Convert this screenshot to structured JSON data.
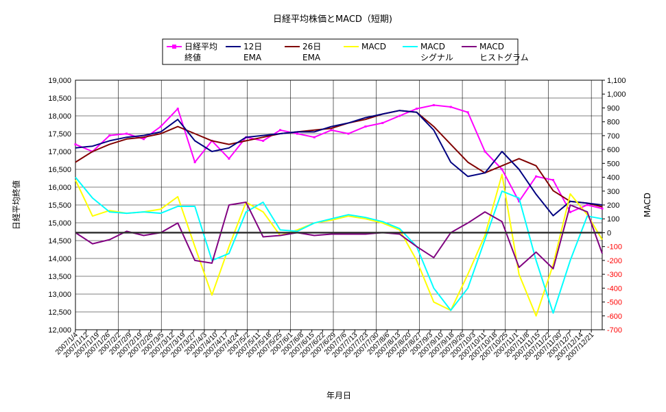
{
  "chart_data": {
    "type": "line",
    "title": "日経平均株価とMACD（短期)",
    "xlabel": "年月日",
    "ylabel_left": "日経平均終値",
    "ylabel_right": "MACD",
    "ylim_left": [
      12000,
      19000
    ],
    "ylim_right": [
      -700,
      1100
    ],
    "left_ticks": [
      "12,000",
      "12,500",
      "13,000",
      "13,500",
      "14,000",
      "14,500",
      "15,000",
      "15,500",
      "16,000",
      "16,500",
      "17,000",
      "17,500",
      "18,000",
      "18,500",
      "19,000"
    ],
    "right_ticks": [
      "-700",
      "-600",
      "-500",
      "-400",
      "-300",
      "-200",
      "-100",
      "0",
      "100",
      "200",
      "300",
      "400",
      "500",
      "600",
      "700",
      "800",
      "900",
      "1,000",
      "1,100"
    ],
    "x_ticks": [
      "2007/1/4",
      "2007/1/12",
      "2007/1/19",
      "2007/1/26",
      "2007/2/2",
      "2007/2/9",
      "2007/2/19",
      "2007/2/26",
      "2007/3/5",
      "2007/3/12",
      "2007/3/19",
      "2007/3/27",
      "2007/4/3",
      "2007/4/10",
      "2007/4/17",
      "2007/4/24",
      "2007/5/2",
      "2007/5/11",
      "2007/5/18",
      "2007/5/25",
      "2007/6/1",
      "2007/6/8",
      "2007/6/15",
      "2007/6/22",
      "2007/6/29",
      "2007/7/6",
      "2007/7/13",
      "2007/7/23",
      "2007/7/30",
      "2007/8/6",
      "2007/8/13",
      "2007/8/20",
      "2007/8/27",
      "2007/9/3",
      "2007/9/10",
      "2007/9/18",
      "2007/9/26",
      "2007/10/3",
      "2007/10/11",
      "2007/10/18",
      "2007/10/25",
      "2007/11/1",
      "2007/11/8",
      "2007/11/15",
      "2007/11/22",
      "2007/11/30",
      "2007/12/7",
      "2007/12/14",
      "2007/12/21"
    ],
    "legend": [
      {
        "label": "日経平均\n終値",
        "color": "#ff00ff",
        "marker": true
      },
      {
        "label": "12日\nEMA",
        "color": "#000080",
        "marker": false
      },
      {
        "label": "26日\nEMA",
        "color": "#800000",
        "marker": false
      },
      {
        "label": "MACD",
        "color": "#ffff00",
        "marker": false
      },
      {
        "label": "MACD\nシグナル",
        "color": "#00ffff",
        "marker": false
      },
      {
        "label": "MACD\nヒストグラム",
        "color": "#800080",
        "marker": false
      }
    ],
    "x": [
      0,
      8,
      16,
      24,
      32,
      40,
      48,
      56,
      64,
      72,
      80,
      88,
      96,
      104,
      112,
      120,
      128,
      136,
      144,
      152,
      160,
      168,
      176,
      184,
      192,
      200,
      208,
      216,
      224,
      232,
      240,
      247
    ],
    "series": [
      {
        "name": "日経平均\n終値",
        "axis": "left",
        "color": "#ff00ff",
        "values": [
          17200,
          17000,
          17450,
          17500,
          17350,
          17700,
          18200,
          16700,
          17300,
          16800,
          17400,
          17300,
          17600,
          17500,
          17400,
          17600,
          17500,
          17700,
          17800,
          18000,
          18200,
          18300,
          18250,
          18100,
          17000,
          16500,
          15600,
          16300,
          16200,
          15300,
          15500,
          15400
        ]
      },
      {
        "name": "12日\nEMA",
        "axis": "left",
        "color": "#000080",
        "values": [
          17100,
          17150,
          17300,
          17400,
          17450,
          17550,
          17900,
          17300,
          17000,
          17100,
          17400,
          17450,
          17500,
          17550,
          17550,
          17700,
          17800,
          17950,
          18050,
          18150,
          18100,
          17600,
          16700,
          16300,
          16400,
          17000,
          16500,
          15800,
          15200,
          15600,
          15550,
          15500
        ]
      },
      {
        "name": "26日\nEMA",
        "axis": "left",
        "color": "#800000",
        "values": [
          16700,
          17000,
          17200,
          17350,
          17400,
          17500,
          17700,
          17500,
          17300,
          17200,
          17300,
          17400,
          17500,
          17550,
          17600,
          17650,
          17800,
          17900,
          18050,
          18150,
          18100,
          17700,
          17200,
          16700,
          16400,
          16600,
          16800,
          16600,
          15900,
          15600,
          15550,
          15450
        ]
      },
      {
        "name": "MACD",
        "axis": "right",
        "color": "#ffff00",
        "values": [
          380,
          120,
          160,
          140,
          150,
          170,
          260,
          -100,
          -450,
          -100,
          220,
          150,
          -20,
          20,
          70,
          90,
          120,
          100,
          70,
          20,
          -200,
          -500,
          -560,
          -300,
          -20,
          420,
          -300,
          -600,
          -230,
          280,
          130,
          -50
        ]
      },
      {
        "name": "MACD\nシグナル",
        "axis": "right",
        "color": "#00ffff",
        "values": [
          400,
          250,
          150,
          140,
          150,
          140,
          190,
          190,
          -200,
          -150,
          150,
          220,
          20,
          10,
          70,
          100,
          130,
          110,
          80,
          30,
          -100,
          -400,
          -560,
          -400,
          -50,
          300,
          250,
          -200,
          -580,
          -200,
          120,
          100
        ]
      },
      {
        "name": "MACD\nヒストグラム",
        "axis": "right",
        "color": "#800080",
        "values": [
          0,
          -80,
          -50,
          10,
          -20,
          0,
          70,
          -200,
          -220,
          200,
          220,
          -30,
          -20,
          0,
          -20,
          -10,
          -10,
          -10,
          0,
          -10,
          -100,
          -180,
          0,
          70,
          150,
          80,
          -250,
          -140,
          -260,
          200,
          150,
          -150
        ]
      }
    ]
  }
}
